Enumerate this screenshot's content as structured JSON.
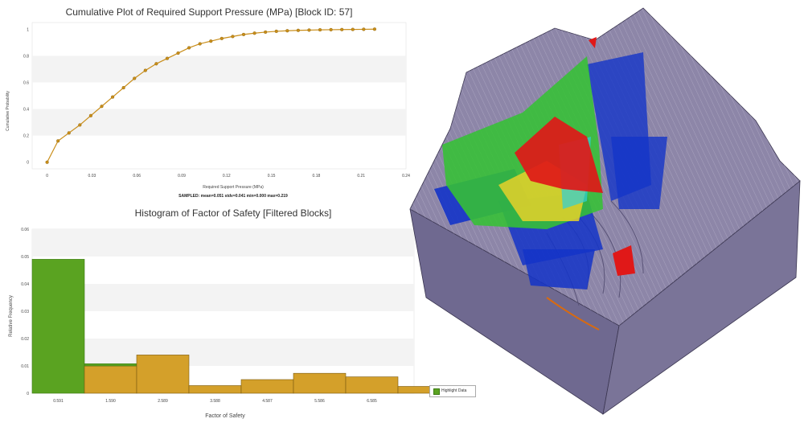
{
  "cdf": {
    "title": "Cumulative Plot of Required Support Pressure (MPa) [Block ID: 57]",
    "xlabel": "Required Support Pressure (MPa)",
    "ylabel": "Cumulative Probability",
    "stats": "SAMPLED: mean=0.051 stdv=0.041 min=0.000 max=0.219"
  },
  "histogram": {
    "title": "Histogram of Factor of Safety [Filtered Blocks]",
    "xlabel": "Factor of Safety",
    "ylabel": "Relative Frequency"
  },
  "legend": {
    "label": "Highlight Data"
  },
  "colors": {
    "curve": "#c98e1a",
    "bar_orange": "#d4a02a",
    "bar_green": "#5aa321",
    "band": "#f3f3f3",
    "model_face": "#8d86a8"
  },
  "chart_data": [
    {
      "type": "line",
      "title": "Cumulative Plot of Required Support Pressure (MPa) [Block ID: 57]",
      "xlabel": "Required Support Pressure (MPa)",
      "ylabel": "Cumulative Probability",
      "xlim": [
        -0.01,
        0.24
      ],
      "ylim": [
        -0.05,
        1.05
      ],
      "x_ticks": [
        "0",
        "0.03",
        "0.06",
        "0.09",
        "0.12",
        "0.15",
        "0.18",
        "0.21",
        "0.24"
      ],
      "y_ticks": [
        "0",
        "0.2",
        "0.4",
        "0.6",
        "0.8",
        "1"
      ],
      "series": [
        {
          "x": [
            0,
            0.0073,
            0.0146,
            0.0219,
            0.0292,
            0.0365,
            0.0438,
            0.0511,
            0.0584,
            0.0657,
            0.073,
            0.0803,
            0.0876,
            0.0949,
            0.1022,
            0.1095,
            0.1168,
            0.1241,
            0.1314,
            0.1387,
            0.146,
            0.1533,
            0.1606,
            0.1679,
            0.1752,
            0.1825,
            0.1898,
            0.1971,
            0.2044,
            0.2117,
            0.219
          ],
          "y": [
            0,
            0.16,
            0.22,
            0.28,
            0.35,
            0.42,
            0.49,
            0.56,
            0.63,
            0.69,
            0.74,
            0.78,
            0.82,
            0.86,
            0.89,
            0.91,
            0.93,
            0.945,
            0.96,
            0.97,
            0.978,
            0.984,
            0.988,
            0.991,
            0.993,
            0.995,
            0.996,
            0.997,
            0.998,
            0.999,
            1.0
          ]
        }
      ],
      "grid": "alternating horizontal bands"
    },
    {
      "type": "bar",
      "title": "Histogram of Factor of Safety [Filtered Blocks]",
      "xlabel": "Factor of Safety",
      "ylabel": "Relative Frequency",
      "categories": [
        "0.591",
        "1.590",
        "2.589",
        "3.588",
        "4.587",
        "5.586",
        "6.585",
        ""
      ],
      "ylim": [
        0,
        0.06
      ],
      "y_ticks": [
        "0",
        "0.01",
        "0.02",
        "0.03",
        "0.04",
        "0.05",
        "0.06"
      ],
      "series": [
        {
          "name": "Filtered Blocks",
          "values": [
            0.0,
            0.01,
            0.014,
            0.0028,
            0.005,
            0.0073,
            0.006,
            0.0025
          ]
        },
        {
          "name": "Highlight Data",
          "values": [
            0.049,
            0.0008,
            0,
            0,
            0,
            0,
            0,
            0
          ]
        }
      ],
      "legend": "bottom-right"
    }
  ]
}
